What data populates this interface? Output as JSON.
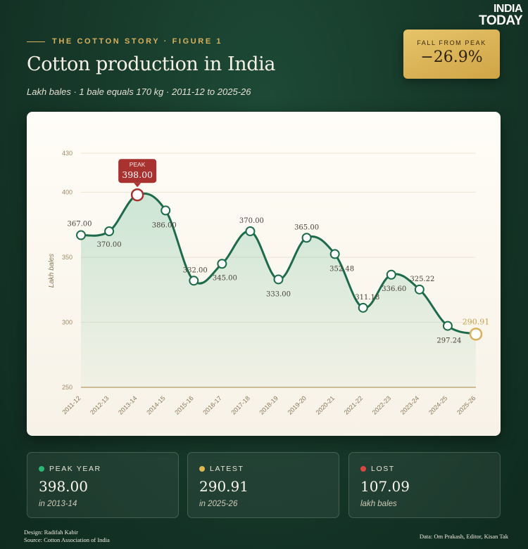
{
  "brand": {
    "line1": "INDIA",
    "line2": "TODAY"
  },
  "header": {
    "eyebrow": "THE COTTON STORY · FIGURE 1",
    "title": "Cotton production in India",
    "subtitle": "Lakh bales · 1 bale equals 170 kg · 2011-12 to 2025-26"
  },
  "callout": {
    "label": "FALL FROM PEAK",
    "value": "−26.9%"
  },
  "chart_data": {
    "type": "line",
    "ylabel": "Lakh bales",
    "ylim": [
      250,
      430
    ],
    "yticks": [
      250,
      300,
      350,
      400,
      430
    ],
    "categories": [
      "2011-12",
      "2012-13",
      "2013-14",
      "2014-15",
      "2015-16",
      "2016-17",
      "2017-18",
      "2018-19",
      "2019-20",
      "2020-21",
      "2021-22",
      "2022-23",
      "2023-24",
      "2024-25",
      "2025-26"
    ],
    "values": [
      367.0,
      370.0,
      398.0,
      386.0,
      332.0,
      345.0,
      370.0,
      333.0,
      365.0,
      352.48,
      311.18,
      336.6,
      325.22,
      297.24,
      290.91
    ],
    "labels": [
      "367.00",
      "370.00",
      "398.00",
      "386.00",
      "332.00",
      "345.00",
      "370.00",
      "333.00",
      "365.00",
      "352.48",
      "311.18",
      "336.60",
      "325.22",
      "297.24",
      "290.91"
    ],
    "peak_tag": "PEAK",
    "peak_index": 2,
    "latest_index": 14,
    "colors": {
      "line": "#1d6b4a",
      "peak": "#a8322f",
      "latest": "#d9b15b",
      "axis": "#b89a6a"
    }
  },
  "stats": [
    {
      "label": "PEAK YEAR",
      "value": "398.00",
      "note": "in 2013-14",
      "color": "#2bb673"
    },
    {
      "label": "LATEST",
      "value": "290.91",
      "note": "in 2025-26",
      "color": "#e2b651"
    },
    {
      "label": "LOST",
      "value": "107.09",
      "note": "lakh bales",
      "color": "#d9453f"
    }
  ],
  "footer": {
    "design": "Design: Radifah Kabir",
    "source": "Source: Cotton Association of India",
    "data": "Data: Om Prakash, Editor, Kisan Tak"
  }
}
